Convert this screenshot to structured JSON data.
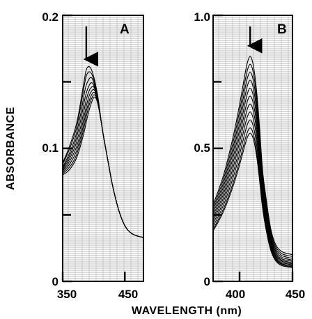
{
  "chart_data": [
    {
      "type": "line",
      "panel_label": "A",
      "xlim": [
        350,
        480
      ],
      "ylim": [
        0,
        0.2
      ],
      "xticks": [
        350,
        450
      ],
      "xtick_labels": [
        "350",
        "450"
      ],
      "yticks": [
        0,
        0.1,
        0.2
      ],
      "ytick_labels": [
        "0",
        "0.1",
        "0.2"
      ],
      "ylabel": "ABSORBANCE",
      "grid": true,
      "arrow": {
        "x": 388,
        "y": 0.166,
        "direction": "down"
      },
      "peaks": [
        0.162,
        0.158,
        0.154,
        0.15,
        0.147,
        0.144,
        0.142,
        0.14,
        0.138
      ],
      "x": [
        350,
        360,
        370,
        375,
        380,
        385,
        388,
        392,
        396,
        400,
        404,
        408,
        412,
        416,
        420,
        425,
        430,
        440,
        450,
        460,
        470,
        480
      ],
      "series": [
        {
          "values": [
            0.089,
            0.1,
            0.114,
            0.124,
            0.138,
            0.152,
            0.16,
            0.162,
            0.16,
            0.154,
            0.146,
            0.135,
            0.12,
            0.108,
            0.098,
            0.085,
            0.072,
            0.053,
            0.041,
            0.036,
            0.034,
            0.033
          ]
        },
        {
          "values": [
            0.088,
            0.098,
            0.111,
            0.121,
            0.134,
            0.148,
            0.155,
            0.158,
            0.157,
            0.152,
            0.145,
            0.134,
            0.12,
            0.108,
            0.098,
            0.085,
            0.072,
            0.053,
            0.041,
            0.036,
            0.034,
            0.033
          ]
        },
        {
          "values": [
            0.086,
            0.095,
            0.107,
            0.117,
            0.128,
            0.142,
            0.148,
            0.152,
            0.154,
            0.15,
            0.143,
            0.133,
            0.12,
            0.108,
            0.098,
            0.085,
            0.072,
            0.053,
            0.041,
            0.036,
            0.034,
            0.033
          ]
        },
        {
          "values": [
            0.085,
            0.093,
            0.104,
            0.113,
            0.123,
            0.136,
            0.142,
            0.147,
            0.15,
            0.148,
            0.142,
            0.133,
            0.12,
            0.108,
            0.098,
            0.085,
            0.072,
            0.053,
            0.041,
            0.036,
            0.034,
            0.033
          ]
        },
        {
          "values": [
            0.084,
            0.091,
            0.101,
            0.109,
            0.118,
            0.13,
            0.137,
            0.143,
            0.146,
            0.147,
            0.141,
            0.132,
            0.12,
            0.108,
            0.098,
            0.085,
            0.072,
            0.053,
            0.041,
            0.036,
            0.034,
            0.033
          ]
        },
        {
          "values": [
            0.083,
            0.089,
            0.098,
            0.105,
            0.114,
            0.125,
            0.132,
            0.139,
            0.143,
            0.145,
            0.141,
            0.132,
            0.12,
            0.108,
            0.098,
            0.085,
            0.072,
            0.053,
            0.041,
            0.036,
            0.034,
            0.033
          ]
        },
        {
          "values": [
            0.082,
            0.087,
            0.095,
            0.102,
            0.11,
            0.121,
            0.128,
            0.135,
            0.14,
            0.143,
            0.14,
            0.131,
            0.12,
            0.108,
            0.098,
            0.085,
            0.072,
            0.053,
            0.041,
            0.036,
            0.034,
            0.033
          ]
        },
        {
          "values": [
            0.081,
            0.085,
            0.092,
            0.099,
            0.107,
            0.117,
            0.124,
            0.132,
            0.137,
            0.141,
            0.139,
            0.131,
            0.12,
            0.108,
            0.098,
            0.085,
            0.072,
            0.053,
            0.041,
            0.036,
            0.034,
            0.033
          ]
        },
        {
          "values": [
            0.08,
            0.083,
            0.09,
            0.096,
            0.104,
            0.113,
            0.12,
            0.128,
            0.134,
            0.139,
            0.138,
            0.131,
            0.12,
            0.108,
            0.098,
            0.085,
            0.072,
            0.053,
            0.041,
            0.036,
            0.034,
            0.033
          ]
        }
      ]
    },
    {
      "type": "line",
      "panel_label": "B",
      "xlim": [
        375,
        450
      ],
      "ylim": [
        0,
        1.0
      ],
      "xticks": [
        400,
        450
      ],
      "xtick_labels": [
        "400",
        "450"
      ],
      "yticks": [
        0,
        0.5,
        1.0
      ],
      "ytick_labels": [
        "0",
        "0.5",
        "1.0"
      ],
      "grid": true,
      "arrow": {
        "x": 410,
        "y": 0.88,
        "direction": "down"
      },
      "x": [
        375,
        380,
        385,
        390,
        395,
        400,
        403,
        406,
        408,
        410,
        412,
        414,
        416,
        418,
        420,
        422,
        425,
        428,
        431,
        435,
        440,
        445,
        450
      ],
      "peaks": [
        0.85,
        0.82,
        0.79,
        0.76,
        0.73,
        0.7,
        0.67,
        0.64,
        0.61,
        0.58,
        0.56
      ],
      "tail": [
        0.1,
        0.093,
        0.086,
        0.08,
        0.075,
        0.07,
        0.066,
        0.062,
        0.058,
        0.055,
        0.052
      ]
    }
  ],
  "shared": {
    "xlabel": "WAVELENGTH (nm)"
  }
}
